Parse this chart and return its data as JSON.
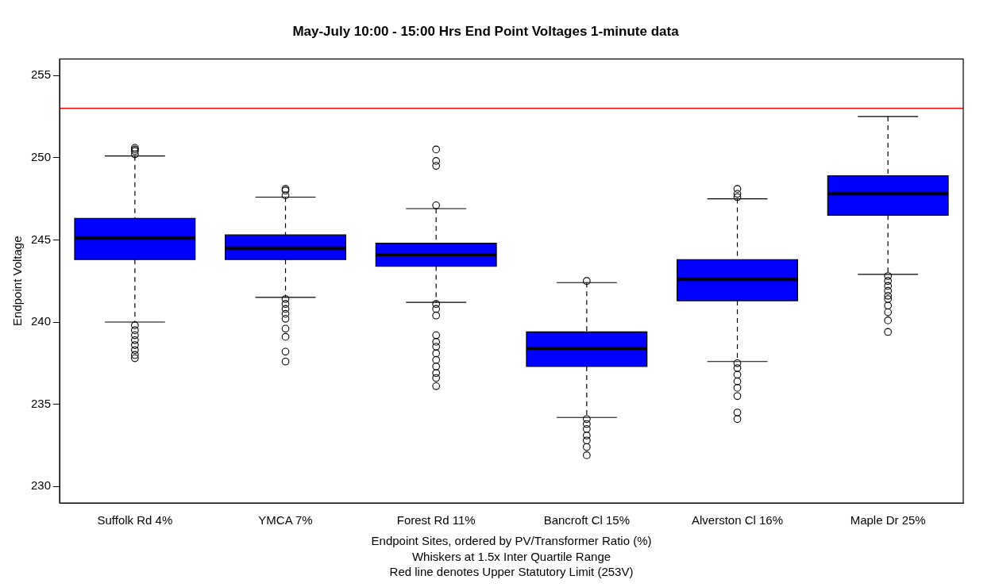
{
  "chart_data": {
    "type": "box",
    "title": "May-July 10:00 - 15:00 Hrs End Point Voltages 1-minute data",
    "xlabel": "Endpoint Sites, ordered by PV/Transformer Ratio (%)",
    "ylabel": "Endpoint Voltage",
    "annotations": [
      "Whiskers at 1.5x Inter Quartile Range",
      "Red line denotes Upper Statutory Limit (253V)"
    ],
    "categories": [
      "Suffolk Rd 4%",
      "YMCA 7%",
      "Forest Rd 11%",
      "Bancroft Cl 15%",
      "Alverston Cl 16%",
      "Maple Dr 25%"
    ],
    "color": "#0000ff",
    "boxes": [
      {
        "low": 240.0,
        "q1": 243.8,
        "median": 245.1,
        "q3": 246.3,
        "high": 250.1,
        "outliers": [
          250.2,
          250.4,
          250.5,
          250.6,
          239.8,
          239.5,
          239.2,
          238.9,
          238.6,
          238.3,
          238.0,
          237.8
        ]
      },
      {
        "low": 241.5,
        "q1": 243.8,
        "median": 244.5,
        "q3": 245.3,
        "high": 247.6,
        "outliers": [
          248.1,
          248.0,
          247.7,
          241.4,
          241.1,
          240.8,
          240.5,
          240.2,
          239.6,
          239.1,
          238.2,
          237.6
        ]
      },
      {
        "low": 241.2,
        "q1": 243.4,
        "median": 244.1,
        "q3": 244.8,
        "high": 246.9,
        "outliers": [
          250.5,
          249.8,
          249.5,
          247.1,
          241.1,
          240.8,
          240.4,
          239.2,
          238.8,
          238.5,
          238.1,
          237.7,
          237.3,
          236.9,
          236.6,
          236.1
        ]
      },
      {
        "low": 234.2,
        "q1": 237.3,
        "median": 238.4,
        "q3": 239.4,
        "high": 242.4,
        "outliers": [
          242.5,
          234.1,
          233.8,
          233.5,
          233.1,
          232.8,
          232.4,
          231.9
        ]
      },
      {
        "low": 237.6,
        "q1": 241.3,
        "median": 242.6,
        "q3": 243.8,
        "high": 247.5,
        "outliers": [
          248.1,
          247.8,
          247.6,
          237.5,
          237.2,
          236.8,
          236.4,
          236.0,
          235.5,
          234.5,
          234.1
        ]
      },
      {
        "low": 242.9,
        "q1": 246.5,
        "median": 247.8,
        "q3": 248.9,
        "high": 252.5,
        "outliers": [
          242.8,
          242.5,
          242.2,
          241.9,
          241.6,
          241.4,
          241.0,
          240.6,
          240.1,
          239.4
        ]
      }
    ],
    "ylim": [
      229,
      256
    ],
    "yticks": [
      230,
      235,
      240,
      245,
      250,
      255
    ],
    "ref_lines": [
      {
        "axis": "y",
        "value": 253,
        "color": "#ff0000"
      }
    ],
    "grid": false,
    "legend": false
  }
}
